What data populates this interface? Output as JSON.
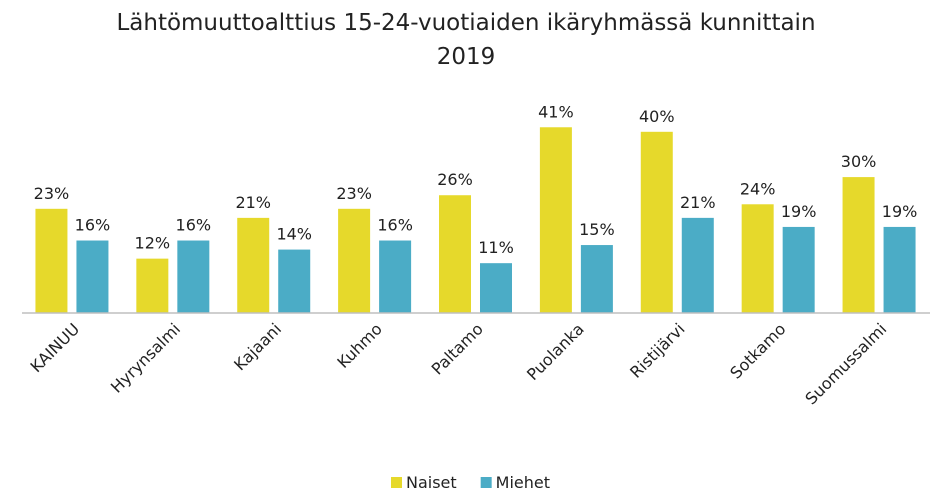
{
  "chart_data": {
    "type": "bar",
    "title": "Lähtömuuttoalttius 15-24-vuotiaiden ikäryhmässä kunnittain 2019",
    "categories": [
      "KAINUU",
      "Hyrynsalmi",
      "Kajaani",
      "Kuhmo",
      "Paltamo",
      "Puolanka",
      "Ristijärvi",
      "Sotkamo",
      "Suomussalmi"
    ],
    "series": [
      {
        "name": "Naiset",
        "color": "#e6d92b",
        "values": [
          23,
          12,
          21,
          23,
          26,
          41,
          40,
          24,
          30
        ],
        "value_labels": [
          "23%",
          "12%",
          "21%",
          "23%",
          "26%",
          "41%",
          "40%",
          "24%",
          "30%"
        ]
      },
      {
        "name": "Miehet",
        "color": "#4bacc6",
        "values": [
          16,
          16,
          14,
          16,
          11,
          15,
          21,
          19,
          19
        ],
        "value_labels": [
          "16%",
          "16%",
          "14%",
          "16%",
          "11%",
          "15%",
          "21%",
          "19%",
          "19%"
        ]
      }
    ],
    "legend": "bottom"
  }
}
